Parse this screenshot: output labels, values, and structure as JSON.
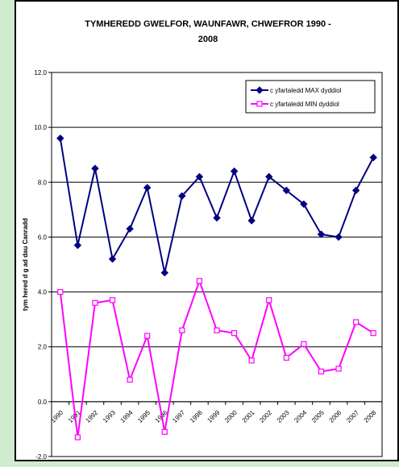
{
  "chart_data": {
    "type": "line",
    "title_line1": "TYMHEREDD GWELFOR, WAUNFAWR, CHWEFROR 1990 -",
    "title_line2": "2008",
    "ylabel": "tym hered d  g ad dau  Canradd",
    "xlabel": "",
    "ylim": [
      -2,
      12
    ],
    "yticks": [
      "-2.0",
      "0.0",
      "2.0",
      "4.0",
      "6.0",
      "8.0",
      "10.0",
      "12.0"
    ],
    "categories": [
      "1990",
      "1991",
      "1992",
      "1993",
      "1994",
      "1995",
      "1996",
      "1997",
      "1998",
      "1999",
      "2000",
      "2001",
      "2002",
      "2003",
      "2004",
      "2005",
      "2006",
      "2007",
      "2008"
    ],
    "grid": true,
    "legend_position": "top-right",
    "series": [
      {
        "name": "c yfartaledd  MAX dyddiol",
        "color": "#000080",
        "marker": "diamond",
        "values": [
          9.6,
          5.7,
          8.5,
          5.2,
          6.3,
          7.8,
          4.7,
          7.5,
          8.2,
          6.7,
          8.4,
          6.6,
          8.2,
          7.7,
          7.2,
          6.1,
          6.0,
          7.7,
          8.9
        ]
      },
      {
        "name": "c yfartaledd  MIN dyddiol",
        "color": "#ff00ff",
        "marker": "square",
        "values": [
          4.0,
          -1.3,
          3.6,
          3.7,
          0.8,
          2.4,
          -1.1,
          2.6,
          4.4,
          2.6,
          2.5,
          1.5,
          3.7,
          1.6,
          2.1,
          1.1,
          1.2,
          2.9,
          2.5
        ]
      }
    ]
  }
}
